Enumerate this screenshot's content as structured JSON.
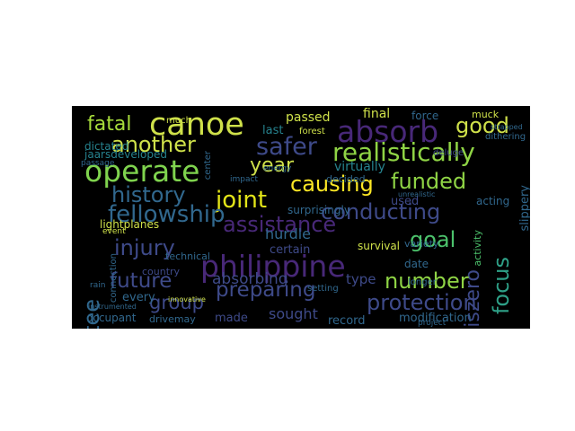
{
  "palette": {
    "yellow": "#cfe14a",
    "lime": "#8fd445",
    "green": "#4cc26c",
    "teal": "#2ea087",
    "aqua": "#26828e",
    "blue": "#31688e",
    "indigo": "#3e4a89",
    "purple": "#482878",
    "dark": "#44085a"
  },
  "words": [
    {
      "text": "canoe",
      "color": "#cfe14a"
    },
    {
      "text": "fatal",
      "color": "#a6db3b"
    },
    {
      "text": "absorb",
      "color": "#482878"
    },
    {
      "text": "good",
      "color": "#cfe14a"
    },
    {
      "text": "operate",
      "color": "#7fd34e"
    },
    {
      "text": "another",
      "color": "#cfe14a"
    },
    {
      "text": "safer",
      "color": "#3e4a89"
    },
    {
      "text": "year",
      "color": "#cfe14a"
    },
    {
      "text": "realistically",
      "color": "#8fd445"
    },
    {
      "text": "causing",
      "color": "#fde725"
    },
    {
      "text": "funded",
      "color": "#8fd445"
    },
    {
      "text": "history",
      "color": "#31688e"
    },
    {
      "text": "joint",
      "color": "#e2e418"
    },
    {
      "text": "fellowship",
      "color": "#31688e"
    },
    {
      "text": "assistance",
      "color": "#482878"
    },
    {
      "text": "conducting",
      "color": "#3e4a89"
    },
    {
      "text": "committee",
      "color": "#31688e"
    },
    {
      "text": "injury",
      "color": "#3e4a89"
    },
    {
      "text": "philippine",
      "color": "#482878"
    },
    {
      "text": "goal",
      "color": "#4cc26c"
    },
    {
      "text": "iszero",
      "color": "#3e4a89"
    },
    {
      "text": "focus",
      "color": "#2ea087"
    },
    {
      "text": "future",
      "color": "#3e4a89"
    },
    {
      "text": "group",
      "color": "#3e4a89"
    },
    {
      "text": "preparing",
      "color": "#3e4a89"
    },
    {
      "text": "number",
      "color": "#8fd445"
    },
    {
      "text": "protection",
      "color": "#3e4a89"
    },
    {
      "text": "absorbing",
      "color": "#3e4a89"
    },
    {
      "text": "type",
      "color": "#3e4a89"
    },
    {
      "text": "sought",
      "color": "#3e4a89"
    },
    {
      "text": "made",
      "color": "#3e4a89"
    },
    {
      "text": "every",
      "color": "#31688e"
    },
    {
      "text": "occupant",
      "color": "#31688e"
    },
    {
      "text": "drivemay",
      "color": "#31688e"
    },
    {
      "text": "record",
      "color": "#31688e"
    },
    {
      "text": "modification",
      "color": "#31688e"
    },
    {
      "text": "passed",
      "color": "#cfe14a"
    },
    {
      "text": "final",
      "color": "#cfe14a"
    },
    {
      "text": "force",
      "color": "#31688e"
    },
    {
      "text": "much",
      "color": "#cfe14a"
    },
    {
      "text": "jaarsdeveloped",
      "color": "#26828e"
    },
    {
      "text": "dictated",
      "color": "#26828e"
    },
    {
      "text": "last",
      "color": "#26828e"
    },
    {
      "text": "virtually",
      "color": "#26828e"
    },
    {
      "text": "decided",
      "color": "#31688e"
    },
    {
      "text": "lightplanes",
      "color": "#cfe14a"
    },
    {
      "text": "event",
      "color": "#cfe14a"
    },
    {
      "text": "technical",
      "color": "#31688e"
    },
    {
      "text": "hurdle",
      "color": "#31688e"
    },
    {
      "text": "certain",
      "color": "#3e4a89"
    },
    {
      "text": "survival",
      "color": "#cfe14a"
    },
    {
      "text": "date",
      "color": "#31688e"
    },
    {
      "text": "variety",
      "color": "#31688e"
    },
    {
      "text": "activity",
      "color": "#4cc26c"
    },
    {
      "text": "acting",
      "color": "#31688e"
    },
    {
      "text": "used",
      "color": "#3e4a89"
    },
    {
      "text": "muck",
      "color": "#cfe14a"
    },
    {
      "text": "slippery",
      "color": "#31688e"
    },
    {
      "text": "dithering",
      "color": "#31688e"
    },
    {
      "text": "surprisingly",
      "color": "#31688e"
    },
    {
      "text": "country",
      "color": "#3e4a89"
    },
    {
      "text": "connection",
      "color": "#31688e"
    },
    {
      "text": "center",
      "color": "#31688e"
    },
    {
      "text": "forest",
      "color": "#cfe14a"
    },
    {
      "text": "longer",
      "color": "#31688e"
    },
    {
      "text": "setting",
      "color": "#31688e"
    },
    {
      "text": "innovative",
      "color": "#cfe14a"
    },
    {
      "text": "energy",
      "color": "#31688e"
    },
    {
      "text": "impact",
      "color": "#31688e"
    },
    {
      "text": "passage",
      "color": "#31688e"
    },
    {
      "text": "rain",
      "color": "#31688e"
    },
    {
      "text": "instrumented",
      "color": "#31688e"
    },
    {
      "text": "deluge",
      "color": "#3e4a89"
    },
    {
      "text": "unrealistic",
      "color": "#31688e"
    },
    {
      "text": "project",
      "color": "#31688e"
    },
    {
      "text": "strapped",
      "color": "#31688e"
    }
  ]
}
